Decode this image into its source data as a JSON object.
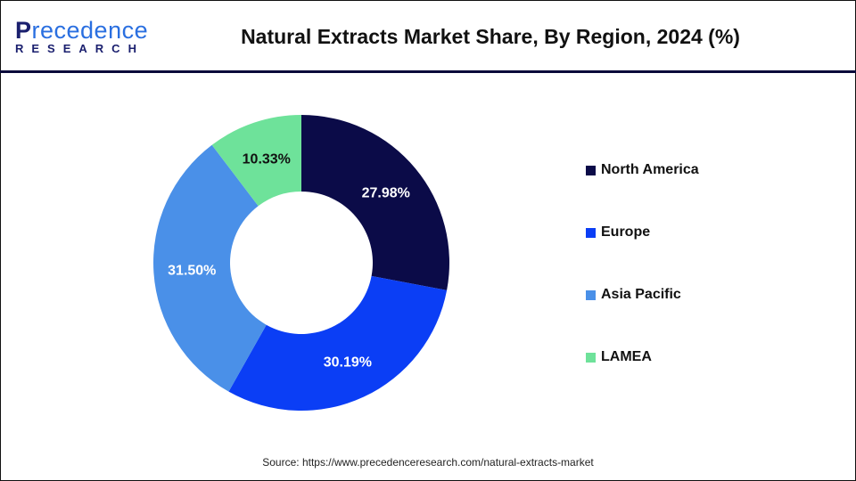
{
  "logo": {
    "line1_first": "P",
    "line1_rest": "recedence",
    "line2": "RESEARCH"
  },
  "title": "Natural Extracts Market Share, By Region, 2024 (%)",
  "chart_data": {
    "type": "pie",
    "donut": true,
    "title": "Natural Extracts Market Share, By Region, 2024 (%)",
    "categories": [
      "North America",
      "Europe",
      "Asia Pacific",
      "LAMEA"
    ],
    "values": [
      27.98,
      30.19,
      31.5,
      10.33
    ],
    "labels": [
      "27.98%",
      "30.19%",
      "31.50%",
      "10.33%"
    ],
    "colors": [
      "#0b0b48",
      "#0b3ef5",
      "#4a90e8",
      "#6ee29a"
    ],
    "label_colors": [
      "#ffffff",
      "#ffffff",
      "#ffffff",
      "#111111"
    ],
    "legend_placement": "right"
  },
  "source": "Source: https://www.precedenceresearch.com/natural-extracts-market"
}
